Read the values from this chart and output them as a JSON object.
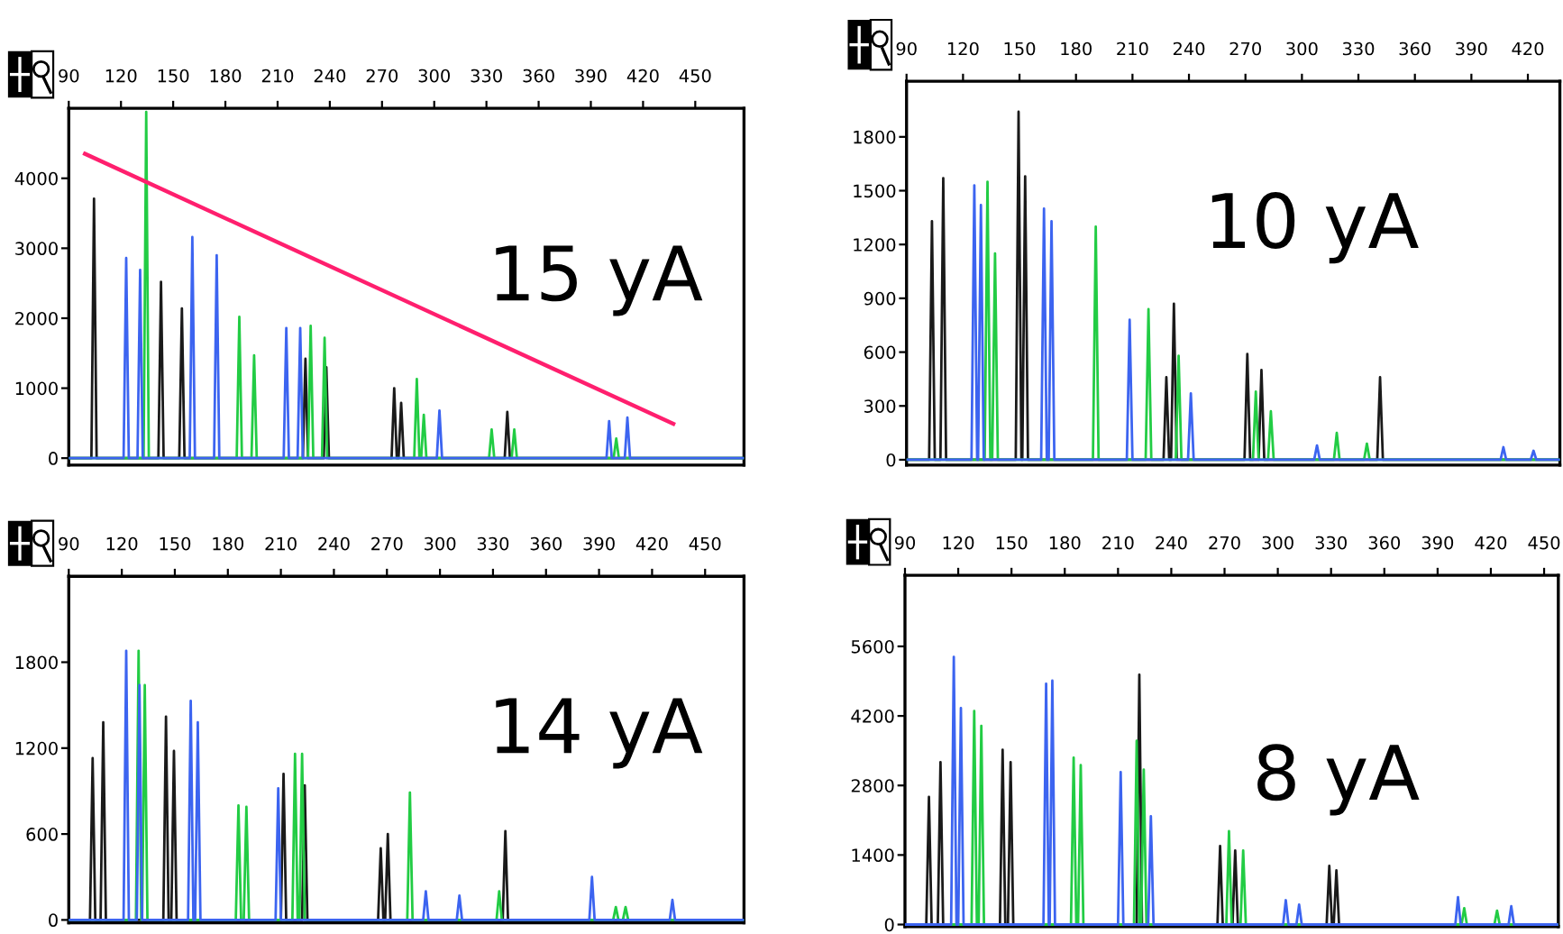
{
  "chart_data": [
    {
      "type": "line",
      "annotations": [
        "15 yA"
      ],
      "xlim": [
        90,
        478
      ],
      "ylim": [
        -100,
        5000
      ],
      "xticks": [
        90,
        120,
        150,
        180,
        210,
        240,
        270,
        300,
        330,
        360,
        390,
        420,
        450
      ],
      "yticks": [
        0,
        1000,
        2000,
        3000,
        4000
      ],
      "grid": false,
      "marker": "none",
      "line_style": "solid",
      "series": [
        {
          "color": "#1a1a1a",
          "x": [
            90,
            103,
            104.5,
            106,
            141.5,
            143,
            144.5,
            153.5,
            155,
            156.5,
            224.5,
            226,
            227.5,
            236.5,
            238,
            239.5,
            275.5,
            277,
            278.5,
            279.5,
            281,
            282.5,
            340.5,
            342,
            343.5,
            478
          ],
          "values": [
            0,
            0,
            3710,
            0,
            0,
            2520,
            0,
            0,
            2140,
            0,
            0,
            1420,
            0,
            0,
            1300,
            0,
            0,
            1000,
            0,
            0,
            790,
            0,
            0,
            660,
            0,
            0
          ]
        },
        {
          "color": "#22cc44",
          "x": [
            90,
            133,
            134.5,
            136,
            186.5,
            188,
            189.5,
            195,
            196.5,
            198,
            227.5,
            229,
            230.5,
            235.5,
            237,
            238.5,
            288.5,
            290,
            291.5,
            292.5,
            294,
            295.5,
            331.5,
            333,
            334.5,
            344.5,
            346,
            347.5,
            403.1,
            404.6,
            406.1,
            478
          ],
          "values": [
            0,
            0,
            4950,
            0,
            0,
            2020,
            0,
            0,
            1470,
            0,
            0,
            1890,
            0,
            0,
            1720,
            0,
            0,
            1130,
            0,
            0,
            620,
            0,
            0,
            410,
            0,
            0,
            410,
            0,
            0,
            280,
            0,
            0
          ]
        },
        {
          "color": "#3c64f0",
          "x": [
            90,
            121.5,
            123,
            124.5,
            129.5,
            131,
            132.5,
            159.5,
            161,
            162.5,
            173.5,
            175,
            176.5,
            213.5,
            215,
            216.5,
            221.5,
            223,
            224.5,
            301.5,
            303,
            304.5,
            399,
            400.5,
            402,
            409.5,
            411,
            412.5,
            478
          ],
          "values": [
            0,
            0,
            2860,
            0,
            0,
            2690,
            0,
            0,
            3160,
            0,
            0,
            2900,
            0,
            0,
            1860,
            0,
            0,
            1860,
            0,
            0,
            680,
            0,
            0,
            530,
            0,
            0,
            580,
            0,
            0
          ]
        },
        {
          "type": "line",
          "color": "#ff1f6e",
          "x": [
            99.3,
            437.4
          ],
          "values": [
            4350,
            490
          ]
        }
      ]
    },
    {
      "type": "line",
      "annotations": [
        "10 yA"
      ],
      "xlim": [
        90,
        437
      ],
      "ylim": [
        -30,
        2110
      ],
      "xticks": [
        90,
        120,
        150,
        180,
        210,
        240,
        270,
        300,
        330,
        360,
        390,
        420
      ],
      "yticks": [
        0,
        300,
        600,
        900,
        1200,
        1500,
        1800
      ],
      "grid": false,
      "marker": "none",
      "line_style": "solid",
      "series": [
        {
          "color": "#1a1a1a",
          "x": [
            90,
            102,
            103.5,
            105,
            108,
            109.5,
            111,
            148,
            149.5,
            151,
            151.5,
            153,
            154.5,
            226.5,
            228,
            229.5,
            230.5,
            232,
            233.5,
            269.5,
            271,
            272.5,
            277,
            278.5,
            280,
            340,
            341.5,
            343,
            437
          ],
          "values": [
            0,
            0,
            1330,
            0,
            0,
            1570,
            0,
            0,
            1940,
            0,
            0,
            1580,
            0,
            0,
            460,
            0,
            0,
            870,
            0,
            0,
            590,
            0,
            0,
            500,
            0,
            0,
            460,
            0,
            0
          ]
        },
        {
          "color": "#22cc44",
          "x": [
            90,
            131.5,
            133,
            134.5,
            135.5,
            137,
            138.5,
            189,
            190.5,
            192,
            217,
            218.5,
            220,
            233,
            234.5,
            236,
            274,
            275.5,
            277,
            282,
            283.5,
            285,
            317,
            318.5,
            320,
            333,
            334.5,
            336,
            437
          ],
          "values": [
            0,
            0,
            1550,
            0,
            0,
            1150,
            0,
            0,
            1300,
            0,
            0,
            840,
            0,
            0,
            580,
            0,
            0,
            380,
            0,
            0,
            270,
            0,
            0,
            150,
            0,
            0,
            90,
            0,
            0
          ]
        },
        {
          "color": "#3c64f0",
          "x": [
            90,
            124.5,
            126,
            127.5,
            128,
            129.5,
            131,
            161.5,
            163,
            164.5,
            165.5,
            167,
            168.5,
            207,
            208.5,
            210,
            239.5,
            241,
            242.5,
            306.5,
            308,
            309.5,
            405.5,
            407,
            408.5,
            421.5,
            423,
            424.5,
            437
          ],
          "values": [
            0,
            0,
            1530,
            0,
            0,
            1420,
            0,
            0,
            1400,
            0,
            0,
            1330,
            0,
            0,
            780,
            0,
            0,
            370,
            0,
            0,
            80,
            0,
            0,
            70,
            0,
            0,
            50,
            0,
            0
          ]
        }
      ]
    },
    {
      "type": "line",
      "annotations": [
        "14 yA"
      ],
      "xlim": [
        90,
        472
      ],
      "ylim": [
        -20,
        2400
      ],
      "xticks": [
        90,
        120,
        150,
        180,
        210,
        240,
        270,
        300,
        330,
        360,
        390,
        420,
        450
      ],
      "yticks": [
        0,
        600,
        1200,
        1800
      ],
      "grid": false,
      "marker": "none",
      "line_style": "solid",
      "series": [
        {
          "color": "#1a1a1a",
          "x": [
            90,
            102,
            103.5,
            105,
            108,
            109.5,
            111,
            143.5,
            145,
            146.5,
            148,
            149.5,
            151,
            210,
            211.5,
            213,
            222,
            223.5,
            225,
            265,
            266.5,
            268,
            269,
            270.5,
            272,
            335.5,
            337,
            338.5,
            472
          ],
          "values": [
            0,
            0,
            1130,
            0,
            0,
            1380,
            0,
            0,
            1420,
            0,
            0,
            1180,
            0,
            0,
            1020,
            0,
            0,
            940,
            0,
            0,
            500,
            0,
            0,
            600,
            0,
            0,
            620,
            0,
            0
          ]
        },
        {
          "color": "#22cc44",
          "x": [
            90,
            128,
            129.5,
            131,
            131.5,
            133,
            134.5,
            184.5,
            186,
            187.5,
            189,
            190.5,
            192,
            216.5,
            218,
            219.5,
            220.5,
            222,
            223.5,
            281.5,
            283,
            284.5,
            332,
            333.5,
            335,
            398,
            399.5,
            401,
            403.5,
            405,
            406.5,
            472
          ],
          "values": [
            0,
            0,
            1880,
            0,
            0,
            1640,
            0,
            0,
            800,
            0,
            0,
            790,
            0,
            0,
            1160,
            0,
            0,
            1160,
            0,
            0,
            890,
            0,
            0,
            200,
            0,
            0,
            90,
            0,
            0,
            90,
            0,
            0
          ]
        },
        {
          "color": "#3c64f0",
          "x": [
            90,
            121,
            122.5,
            124,
            128.5,
            130,
            131.5,
            157.5,
            159,
            160.5,
            161.5,
            163,
            164.5,
            207,
            208.5,
            210,
            290.5,
            292,
            293.5,
            309.5,
            311,
            312.5,
            384.5,
            386,
            387.5,
            430,
            431.5,
            433,
            472
          ],
          "values": [
            0,
            0,
            1880,
            0,
            0,
            1640,
            0,
            0,
            1530,
            0,
            0,
            1380,
            0,
            0,
            920,
            0,
            0,
            200,
            0,
            0,
            170,
            0,
            0,
            300,
            0,
            0,
            140,
            0,
            0
          ]
        }
      ]
    },
    {
      "type": "line",
      "annotations": [
        "8 yA"
      ],
      "xlim": [
        90,
        458
      ],
      "ylim": [
        -40,
        7030
      ],
      "xticks": [
        90,
        120,
        150,
        180,
        210,
        240,
        270,
        300,
        330,
        360,
        390,
        420,
        450
      ],
      "yticks": [
        0,
        1400,
        2800,
        4200,
        5600
      ],
      "grid": false,
      "marker": "none",
      "line_style": "solid",
      "series": [
        {
          "color": "#1a1a1a",
          "x": [
            90,
            102,
            103.5,
            105,
            108.5,
            110,
            111.5,
            143.5,
            145,
            146.5,
            148,
            149.5,
            151,
            220.5,
            222,
            223.5,
            266,
            267.5,
            269,
            274.5,
            276,
            277.5,
            327.5,
            329,
            330.5,
            331.5,
            333,
            334.5,
            458
          ],
          "values": [
            0,
            0,
            2570,
            0,
            0,
            3270,
            0,
            0,
            3520,
            0,
            0,
            3270,
            0,
            0,
            5030,
            0,
            0,
            1580,
            0,
            0,
            1490,
            0,
            0,
            1180,
            0,
            0,
            1090,
            0,
            0
          ]
        },
        {
          "color": "#22cc44",
          "x": [
            90,
            127.5,
            129,
            130.5,
            131.5,
            133,
            134.5,
            183.5,
            185,
            186.5,
            187.5,
            189,
            190.5,
            219,
            220.5,
            222,
            223,
            224.5,
            226,
            271,
            272.5,
            274,
            279,
            280.5,
            282,
            403.5,
            405,
            406.5,
            422,
            423.5,
            425,
            458
          ],
          "values": [
            0,
            0,
            4300,
            0,
            0,
            4000,
            0,
            0,
            3360,
            0,
            0,
            3210,
            0,
            0,
            3700,
            0,
            0,
            3120,
            0,
            0,
            1880,
            0,
            0,
            1490,
            0,
            0,
            330,
            0,
            0,
            280,
            0,
            0
          ]
        },
        {
          "color": "#3c64f0",
          "x": [
            90,
            116,
            117.5,
            119,
            120,
            121.5,
            123,
            168,
            169.5,
            171,
            171.5,
            173,
            174.5,
            210,
            211.5,
            213,
            227,
            228.5,
            230,
            303,
            304.5,
            306,
            310.5,
            312,
            313.5,
            400,
            401.5,
            403,
            430,
            431.5,
            433,
            458
          ],
          "values": [
            0,
            0,
            5390,
            0,
            0,
            4360,
            0,
            0,
            4850,
            0,
            0,
            4910,
            0,
            0,
            3070,
            0,
            0,
            2180,
            0,
            0,
            490,
            0,
            0,
            400,
            0,
            0,
            550,
            0,
            0,
            370,
            0,
            0
          ]
        }
      ]
    }
  ]
}
